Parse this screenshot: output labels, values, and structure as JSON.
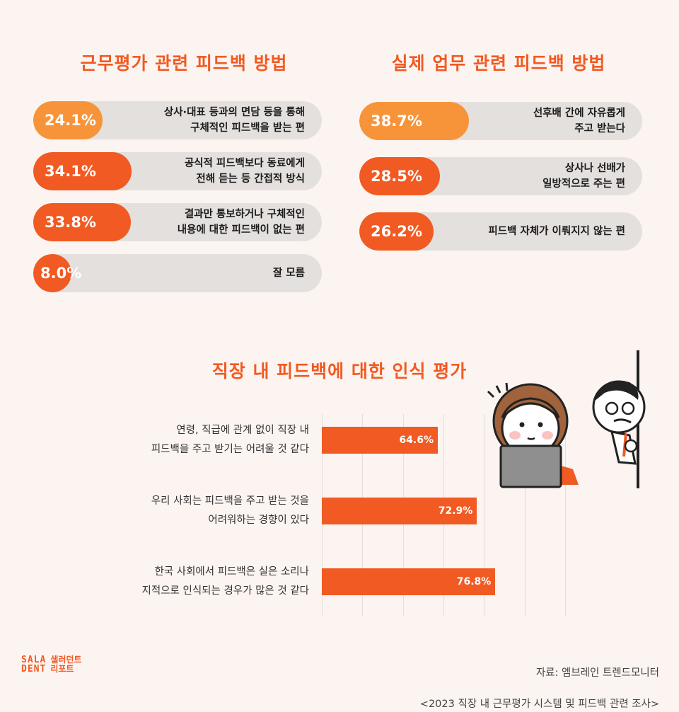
{
  "left_panel": {
    "title": "근무평가 관련 피드백 방법",
    "items": [
      {
        "pct": "24.1%",
        "value": 24.1,
        "label": "상사·대표 등과의 면담 등을 통해\n구체적인 피드백을 받는 편",
        "color": "#f7943a"
      },
      {
        "pct": "34.1%",
        "value": 34.1,
        "label": "공식적 피드백보다 동료에게\n전해 듣는 등 간접적 방식",
        "color": "#f15a22"
      },
      {
        "pct": "33.8%",
        "value": 33.8,
        "label": "결과만 통보하거나 구체적인\n내용에 대한 피드백이 없는 편",
        "color": "#f15a22"
      },
      {
        "pct": "8.0%",
        "value": 8.0,
        "label": "잘 모름",
        "color": "#f15a22"
      }
    ]
  },
  "right_panel": {
    "title": "실제 업무 관련 피드백 방법",
    "items": [
      {
        "pct": "38.7%",
        "value": 38.7,
        "label": "선후배 간에 자유롭게\n주고 받는다",
        "color": "#f7943a"
      },
      {
        "pct": "28.5%",
        "value": 28.5,
        "label": "상사나 선배가\n일방적으로 주는 편",
        "color": "#f15a22"
      },
      {
        "pct": "26.2%",
        "value": 26.2,
        "label": "피드백 자체가 이뤄지지 않는 편",
        "color": "#f15a22"
      }
    ]
  },
  "chart_data": {
    "type": "bar",
    "title": "직장 내 피드백에 대한 인식 평가",
    "categories": [
      "연령, 직급에 관계 없이 직장 내\n피드백을 주고 받기는 어려울 것 같다",
      "우리 사회는 피드백을 주고 받는 것을\n어려워하는 경향이 있다",
      "한국 사회에서 피드백은 실은 소리나\n지적으로 인식되는 경우가 많은 것 같다"
    ],
    "values": [
      64.6,
      72.9,
      76.8
    ],
    "value_labels": [
      "64.6%",
      "72.9%",
      "76.8%"
    ],
    "orientation": "horizontal",
    "xlim": [
      40,
      100
    ],
    "grid": true,
    "bar_color": "#f15a22"
  },
  "source": {
    "line1": "자료: 엠브레인 트렌드모니터",
    "line2": "<2023 직장 내 근무평가 시스템 및 피드백 관련 조사>"
  },
  "logo": {
    "en_top": "SALA",
    "en_bottom": "DENT",
    "ko_top": "샐러던트",
    "ko_bottom": "리포트"
  },
  "colors": {
    "accent": "#f15a22",
    "accent_light": "#f7943a",
    "track": "#e4e0de",
    "background": "#fcf4f1"
  },
  "icons": [
    "woman-with-laptop-illustration",
    "peeking-boss-illustration"
  ]
}
